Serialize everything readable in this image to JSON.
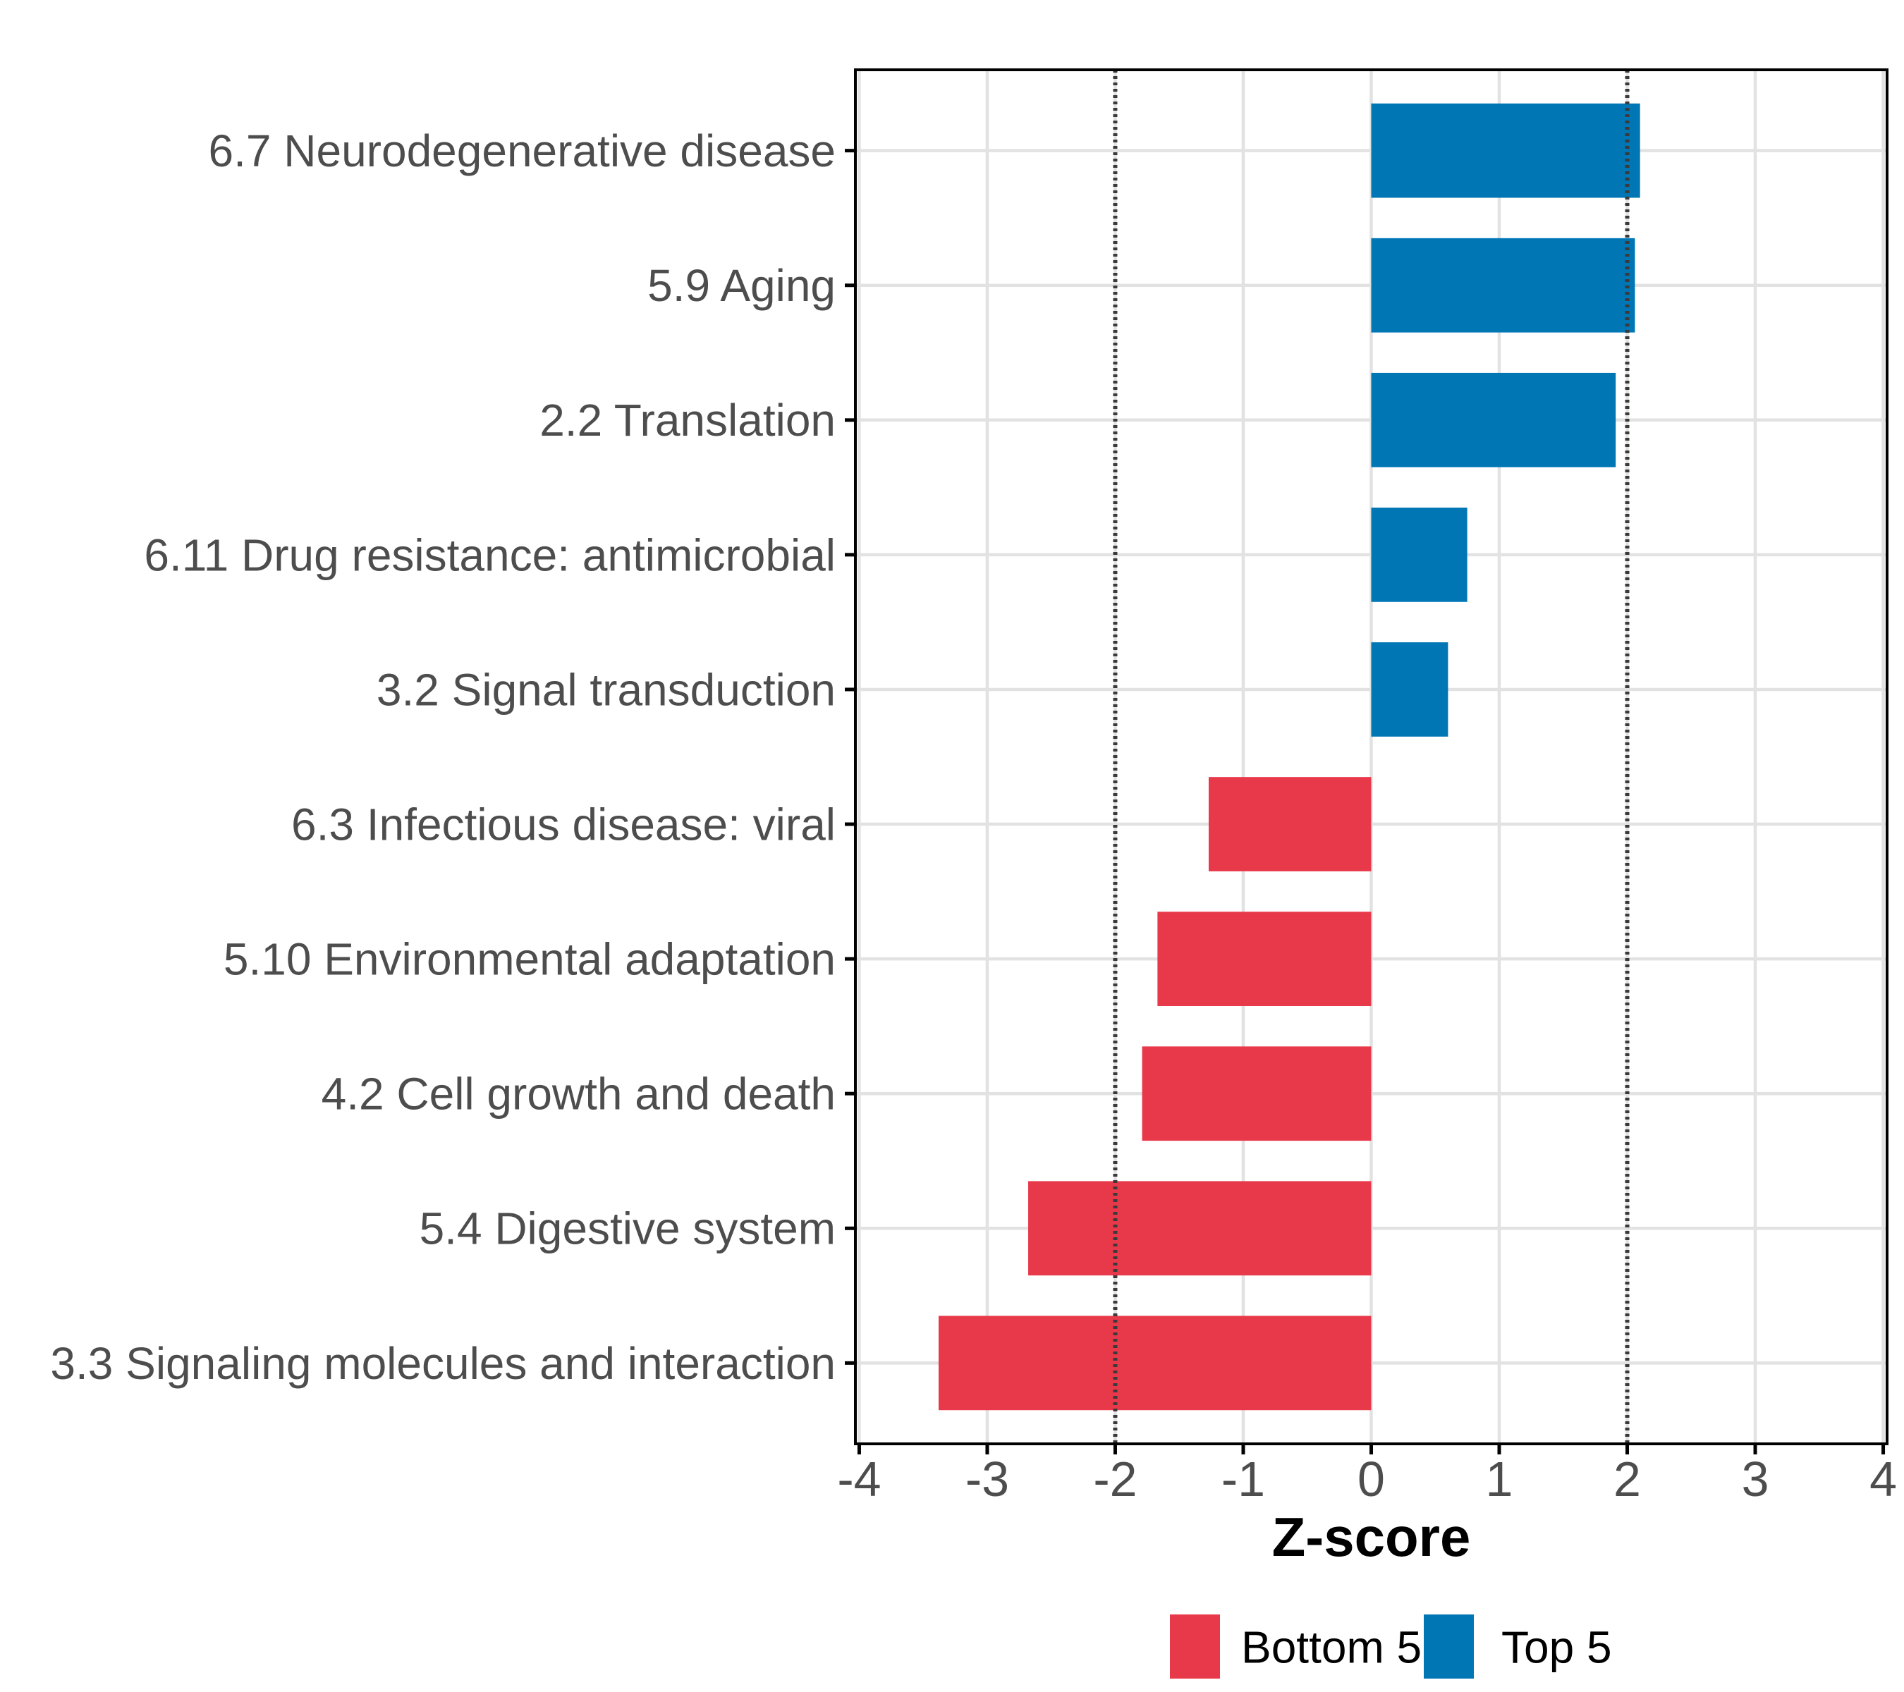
{
  "chart_data": {
    "type": "bar",
    "orientation": "horizontal",
    "title": "",
    "xlabel": "Z-score",
    "ylabel": "",
    "categories": [
      "6.7 Neurodegenerative disease",
      "5.9 Aging",
      "2.2 Translation",
      "6.11 Drug resistance: antimicrobial",
      "3.2 Signal transduction",
      "6.3 Infectious disease: viral",
      "5.10 Environmental adaptation",
      "4.2 Cell growth and death",
      "5.4 Digestive system",
      "3.3 Signaling molecules and interaction"
    ],
    "values": [
      2.1,
      2.06,
      1.91,
      0.75,
      0.6,
      -1.27,
      -1.67,
      -1.79,
      -2.68,
      -3.38
    ],
    "groups": [
      "Top 5",
      "Top 5",
      "Top 5",
      "Top 5",
      "Top 5",
      "Bottom 5",
      "Bottom 5",
      "Bottom 5",
      "Bottom 5",
      "Bottom 5"
    ],
    "group_colors": {
      "Bottom 5": "#E8394A",
      "Top 5": "#0076B4"
    },
    "xlim": [
      -4,
      4
    ],
    "xticks": [
      -4,
      -3,
      -2,
      -1,
      0,
      1,
      2,
      3,
      4
    ],
    "xtick_labels": [
      "-4",
      "-3",
      "-2",
      "-1",
      "0",
      "1",
      "2",
      "3",
      "4"
    ],
    "reference_lines": [
      -2,
      2
    ],
    "grid": true,
    "legend": {
      "position": "bottom",
      "entries": [
        {
          "label": "Bottom 5",
          "color": "#E8394A"
        },
        {
          "label": "Top 5",
          "color": "#0076B4"
        }
      ]
    },
    "colors": {
      "axis_text": "#4D4D4D",
      "grid": "#E2E2E2",
      "panel_border": "#000000",
      "tick": "#000000",
      "reference_line": "#3A3A3A",
      "axis_title": "#000000",
      "legend_text": "#000000",
      "background": "#FFFFFF"
    }
  }
}
